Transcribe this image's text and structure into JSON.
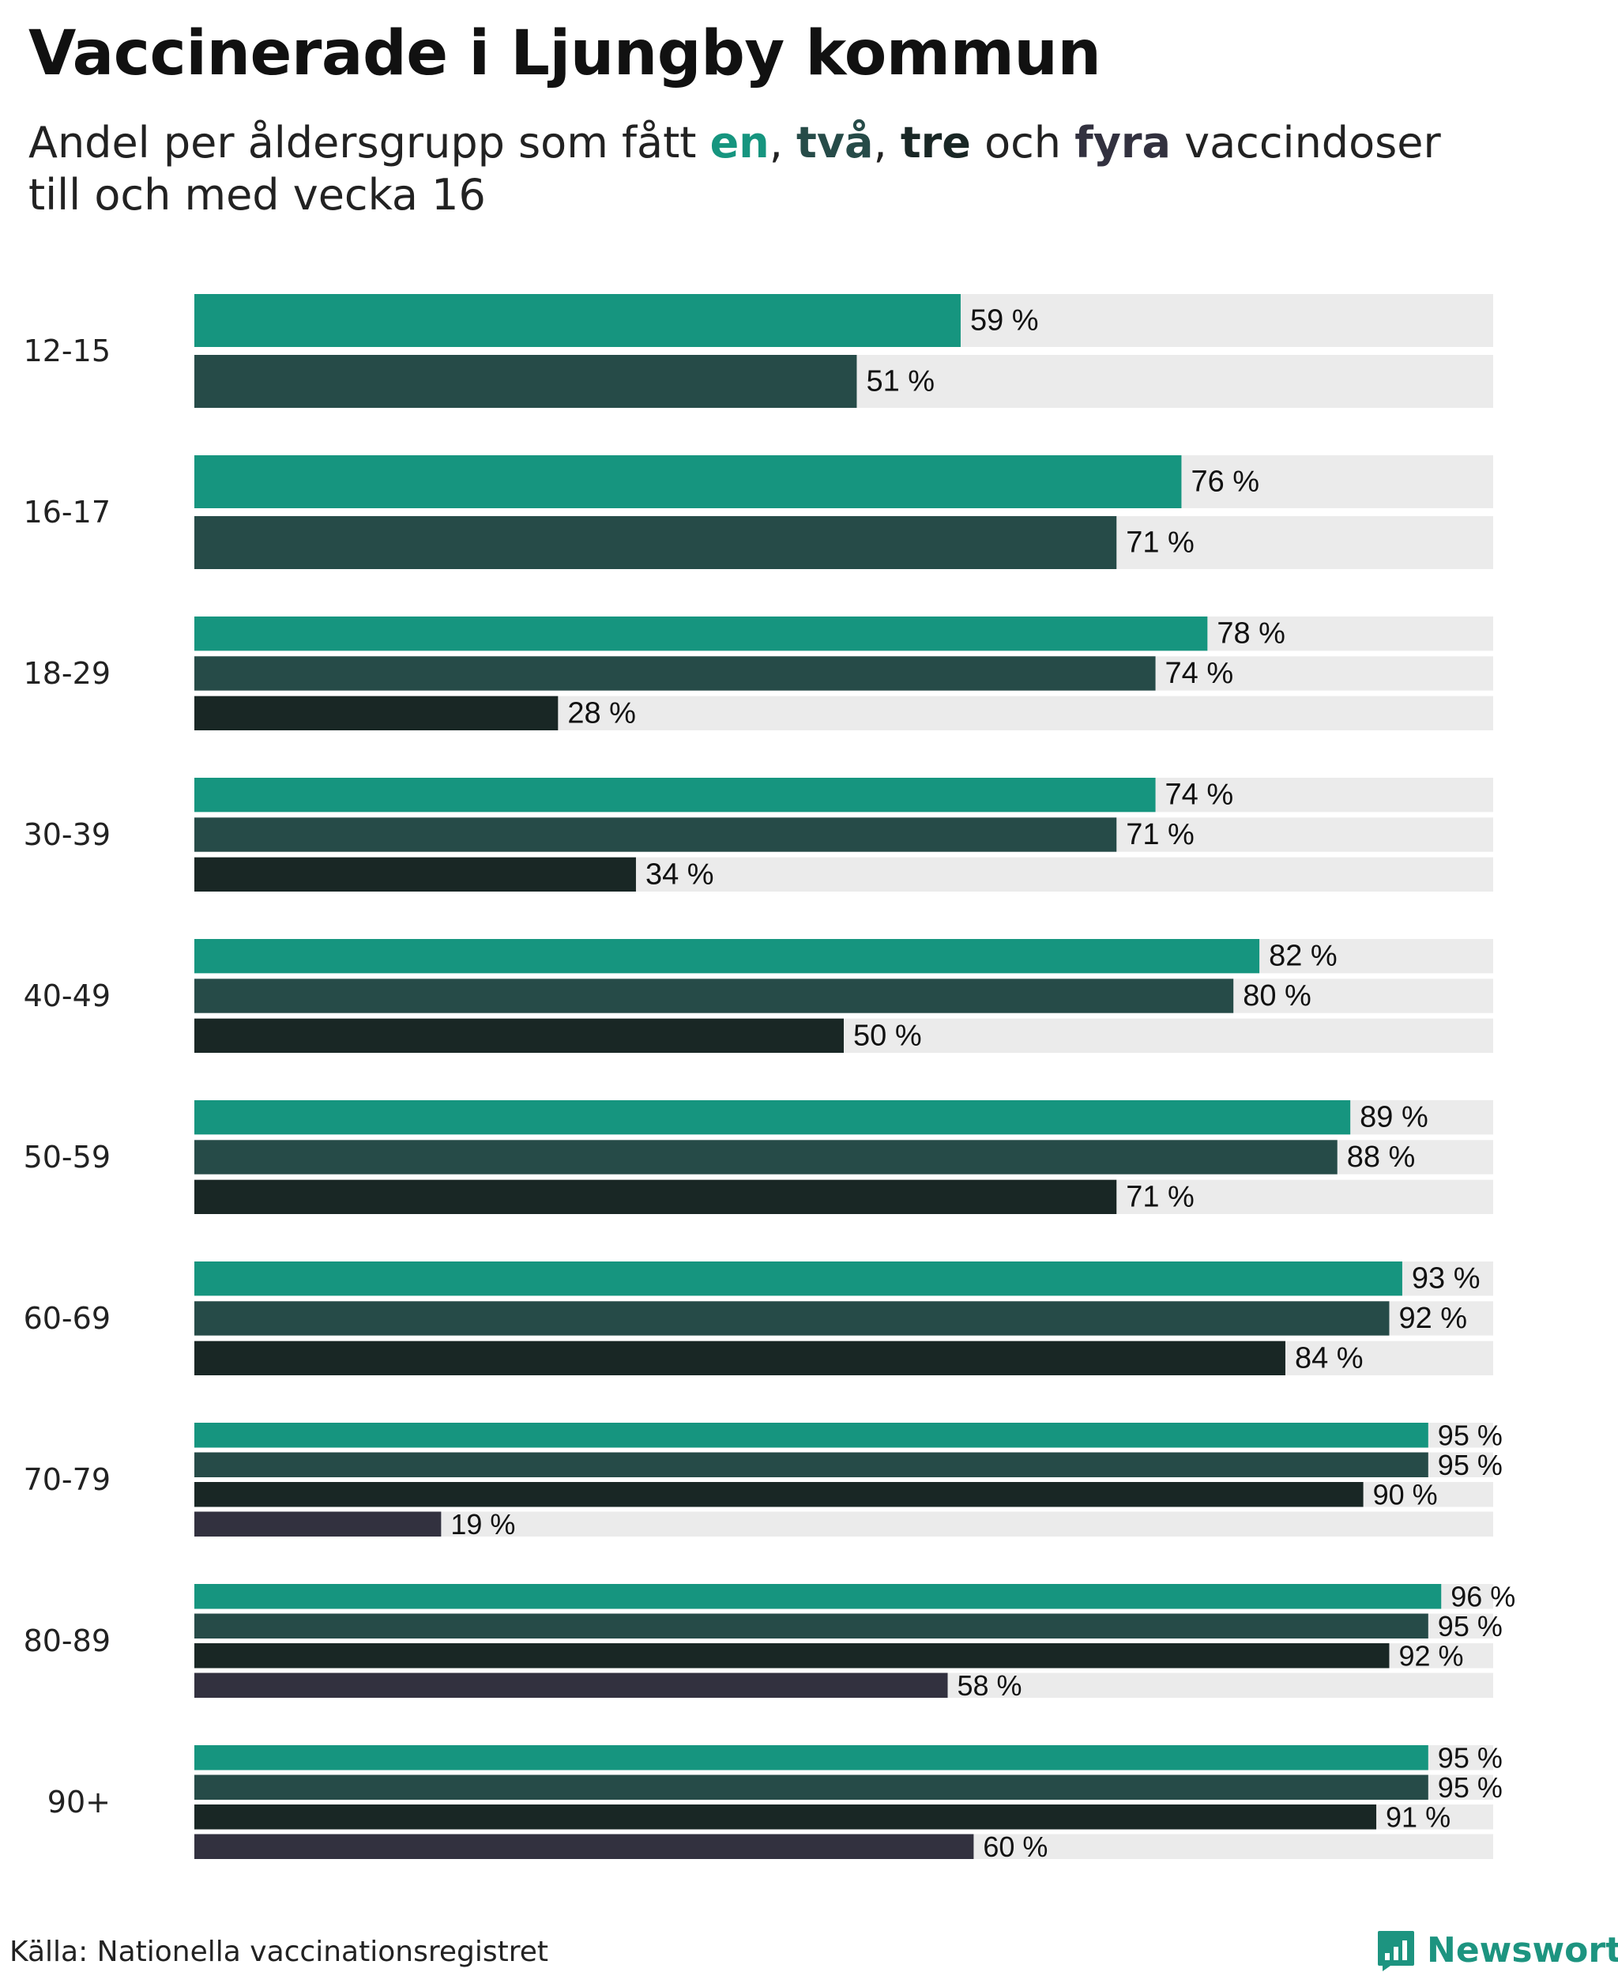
{
  "title": "Vaccinerade i Ljungby kommun",
  "subtitle": {
    "prefix": "Andel per åldersgrupp som fått ",
    "dose1": "en",
    "sep1": ", ",
    "dose2": "två",
    "sep2": ", ",
    "dose3": "tre",
    "conj": " och ",
    "dose4": "fyra",
    "suffix1": " vaccindoser",
    "line2": "till och med vecka 16"
  },
  "source": "Källa: Nationella vaccinationsregistret",
  "brand": {
    "name": "Newsworthy",
    "icon": "newsworthy-logo-icon"
  },
  "colors": {
    "dose1": "#16957f",
    "dose2": "#264b48",
    "dose3": "#192725",
    "dose4": "#32313f",
    "track": "#ebebeb",
    "brand": "#1d9480"
  },
  "chart_data": {
    "type": "bar",
    "orientation": "horizontal",
    "value_suffix": " %",
    "xlim": [
      0,
      100
    ],
    "categories": [
      "12-15",
      "16-17",
      "18-29",
      "30-39",
      "40-49",
      "50-59",
      "60-69",
      "70-79",
      "80-89",
      "90+"
    ],
    "series": [
      {
        "name": "en",
        "values": [
          59,
          76,
          78,
          74,
          82,
          89,
          93,
          95,
          96,
          95
        ]
      },
      {
        "name": "två",
        "values": [
          51,
          71,
          74,
          71,
          80,
          88,
          92,
          95,
          95,
          95
        ]
      },
      {
        "name": "tre",
        "values": [
          null,
          null,
          28,
          34,
          50,
          71,
          84,
          90,
          92,
          91
        ]
      },
      {
        "name": "fyra",
        "values": [
          null,
          null,
          null,
          null,
          null,
          null,
          null,
          19,
          58,
          60
        ]
      }
    ]
  }
}
